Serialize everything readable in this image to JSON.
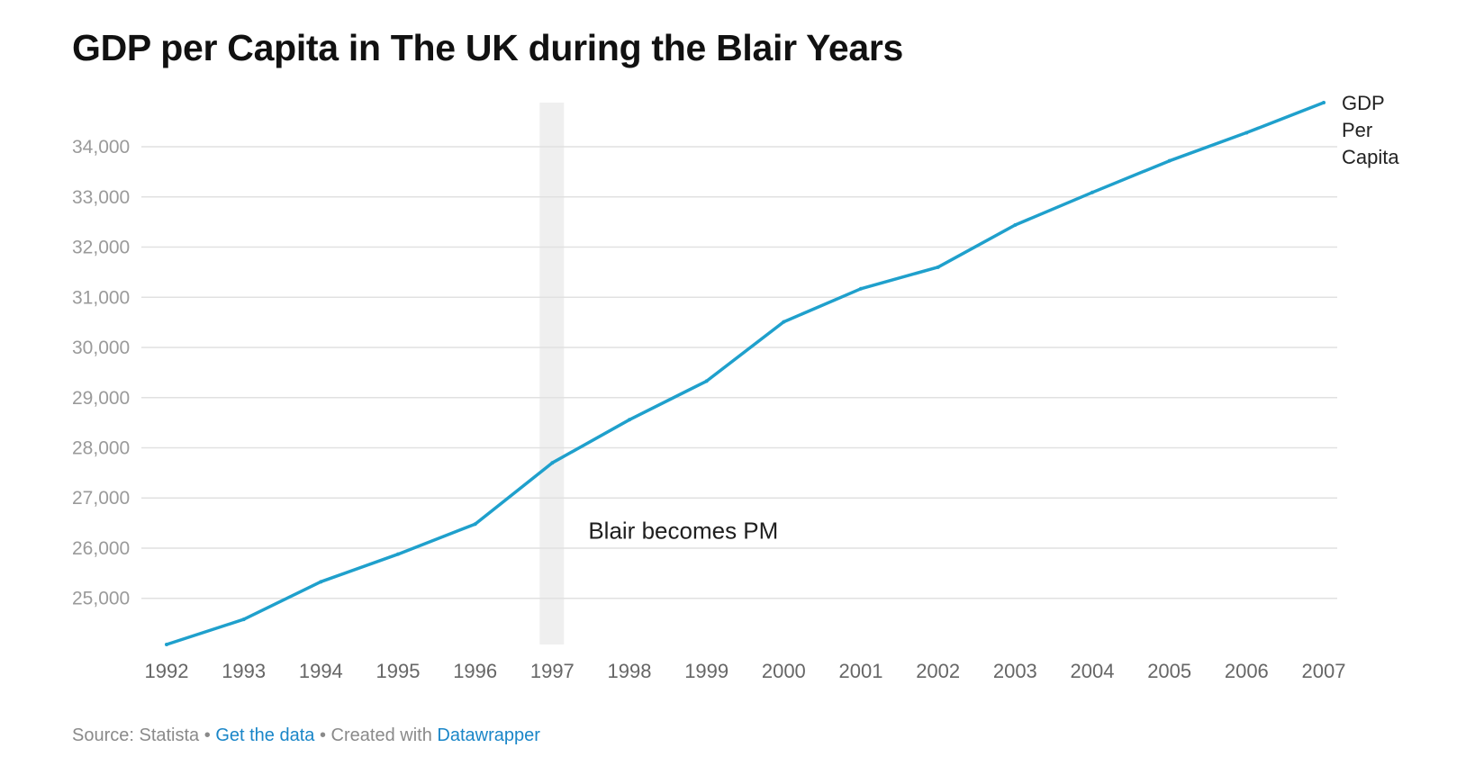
{
  "chart_data": {
    "type": "line",
    "title": "GDP per Capita in The UK during the Blair Years",
    "x": [
      1992,
      1993,
      1994,
      1995,
      1996,
      1997,
      1998,
      1999,
      2000,
      2001,
      2002,
      2003,
      2004,
      2005,
      2006,
      2007
    ],
    "x_tick_labels": [
      "1992",
      "1993",
      "1994",
      "1995",
      "1996",
      "1997",
      "1998",
      "1999",
      "2000",
      "2001",
      "2002",
      "2003",
      "2004",
      "2005",
      "2006",
      "2007"
    ],
    "series": [
      {
        "name": "GDP Per Capita",
        "color": "#1fa0cc",
        "values": [
          24080,
          24580,
          25330,
          25880,
          26480,
          27700,
          28560,
          29330,
          30510,
          31170,
          31600,
          32440,
          33090,
          33720,
          34280,
          34880
        ]
      }
    ],
    "series_label_lines": [
      "GDP",
      "Per",
      "Capita"
    ],
    "y_ticks": [
      25000,
      26000,
      27000,
      28000,
      29000,
      30000,
      31000,
      32000,
      33000,
      34000
    ],
    "y_tick_labels": [
      "25,000",
      "26,000",
      "27,000",
      "28,000",
      "29,000",
      "30,000",
      "31,000",
      "32,000",
      "33,000",
      "34,000"
    ],
    "ylim": [
      24080,
      34880
    ],
    "grid": true,
    "highlight": {
      "x": 1997,
      "color": "#efefef"
    },
    "annotation": {
      "text": "Blair becomes PM",
      "x": 1997,
      "y": 26350
    },
    "xlabel": "",
    "ylabel": ""
  },
  "footer": {
    "source": "Source: Statista",
    "separator": "•",
    "get_data_link": "Get the data",
    "created_with": "Created with",
    "tool_link": "Datawrapper"
  }
}
